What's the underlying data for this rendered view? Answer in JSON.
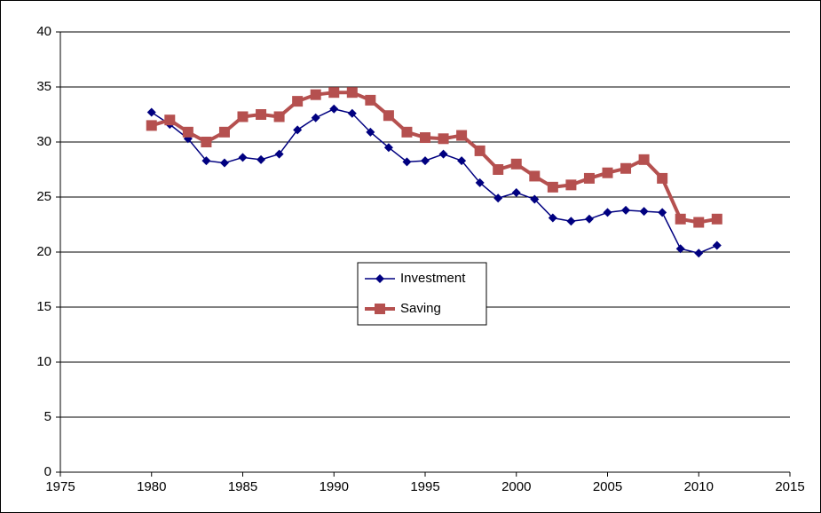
{
  "chart_data": {
    "type": "line",
    "x": [
      1980,
      1981,
      1982,
      1983,
      1984,
      1985,
      1986,
      1987,
      1988,
      1989,
      1990,
      1991,
      1992,
      1993,
      1994,
      1995,
      1996,
      1997,
      1998,
      1999,
      2000,
      2001,
      2002,
      2003,
      2004,
      2005,
      2006,
      2007,
      2008,
      2009,
      2010,
      2011
    ],
    "series": [
      {
        "name": "Investment",
        "color": "#000080",
        "marker": "diamond",
        "values": [
          32.7,
          31.6,
          30.3,
          28.3,
          28.1,
          28.6,
          28.4,
          28.9,
          31.1,
          32.2,
          33.0,
          32.6,
          30.9,
          29.5,
          28.2,
          28.3,
          28.9,
          28.3,
          26.3,
          24.9,
          25.4,
          24.8,
          23.1,
          22.8,
          23.0,
          23.6,
          23.8,
          23.7,
          23.6,
          20.3,
          19.9,
          20.6
        ]
      },
      {
        "name": "Saving",
        "color": "#b5504f",
        "marker": "square",
        "values": [
          31.5,
          32.0,
          30.9,
          30.0,
          30.9,
          32.3,
          32.5,
          32.3,
          33.7,
          34.3,
          34.5,
          34.5,
          33.8,
          32.4,
          30.9,
          30.4,
          30.3,
          30.6,
          29.2,
          27.5,
          28.0,
          26.9,
          25.9,
          26.1,
          26.7,
          27.2,
          27.6,
          28.4,
          26.7,
          23.0,
          22.7,
          23.0
        ]
      }
    ],
    "xlim": [
      1975,
      2015
    ],
    "xticks": [
      1975,
      1980,
      1985,
      1990,
      1995,
      2000,
      2005,
      2010,
      2015
    ],
    "ylim": [
      0,
      40
    ],
    "yticks": [
      0,
      5,
      10,
      15,
      20,
      25,
      30,
      35,
      40
    ],
    "grid": true,
    "legend": "center"
  }
}
